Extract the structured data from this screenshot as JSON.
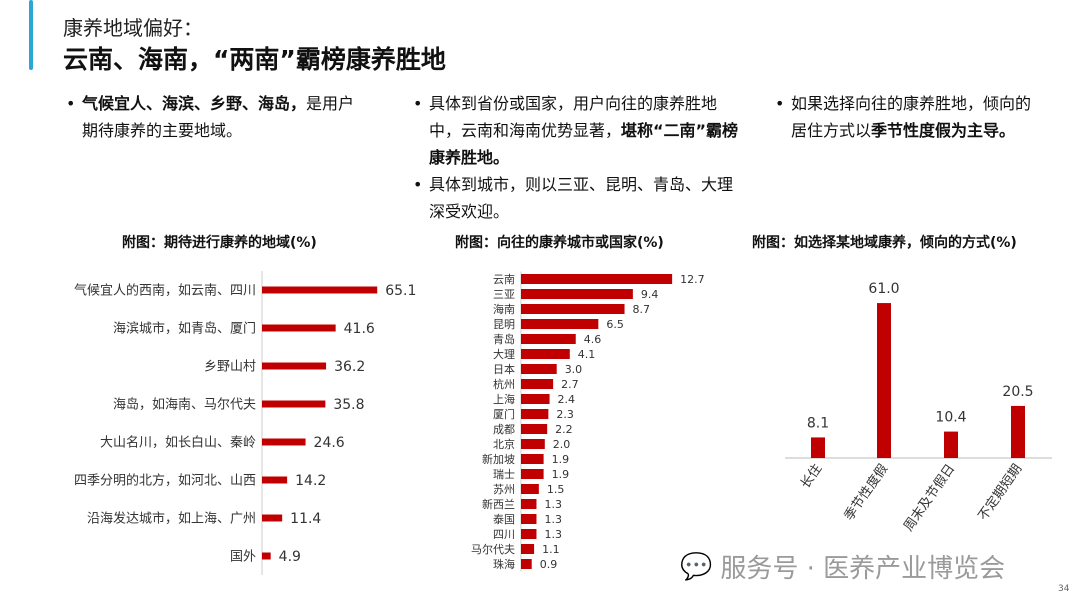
{
  "header": {
    "subtitle": "康养地域偏好：",
    "title": "云南、海南，“两南”霸榜康养胜地"
  },
  "bullets": {
    "col1": [
      {
        "bold": "气候宜人、海滨、乡野、海岛，",
        "rest": "是用户期待康养的主要地域。"
      }
    ],
    "col2": [
      {
        "pre": "具体到省份或国家，用户向往的康养胜地中，云南和海南优势显著，",
        "bold": "堪称“二南”霸榜康养胜地。"
      },
      {
        "pre": "具体到城市，则以三亚、昆明、青岛、大理深受欢迎。",
        "bold": ""
      }
    ],
    "col3": [
      {
        "pre": "如果选择向往的康养胜地，倾向的居住方式以",
        "bold": "季节性度假为主导。"
      }
    ]
  },
  "bar_color": "#c00000",
  "chart_data": [
    {
      "type": "bar",
      "orientation": "horizontal",
      "title": "附图：期待进行康养的地域(%)",
      "categories": [
        "气候宜人的西南，如云南、四川",
        "海滨城市，如青岛、厦门",
        "乡野山村",
        "海岛，如海南、马尔代夫",
        "大山名川，如长白山、秦岭",
        "四季分明的北方，如河北、山西",
        "沿海发达城市，如上海、广州",
        "国外"
      ],
      "values": [
        65.1,
        41.6,
        36.2,
        35.8,
        24.6,
        14.2,
        11.4,
        4.9
      ]
    },
    {
      "type": "bar",
      "orientation": "horizontal",
      "title": "附图：向往的康养城市或国家(%)",
      "categories": [
        "云南",
        "三亚",
        "海南",
        "昆明",
        "青岛",
        "大理",
        "日本",
        "杭州",
        "上海",
        "厦门",
        "成都",
        "北京",
        "新加坡",
        "瑞士",
        "苏州",
        "新西兰",
        "泰国",
        "四川",
        "马尔代夫",
        "珠海"
      ],
      "values": [
        12.7,
        9.4,
        8.7,
        6.5,
        4.6,
        4.1,
        3.0,
        2.7,
        2.4,
        2.3,
        2.2,
        2.0,
        1.9,
        1.9,
        1.5,
        1.3,
        1.3,
        1.3,
        1.1,
        0.9
      ]
    },
    {
      "type": "bar",
      "orientation": "vertical",
      "title": "附图：如选择某地域康养，倾向的方式(%)",
      "categories": [
        "长住",
        "季节性度假",
        "周末及节假日",
        "不定期短期"
      ],
      "values": [
        8.1,
        61.0,
        10.4,
        20.5
      ]
    }
  ],
  "watermark": "服务号 · 医养产业博览会",
  "page_number": "34"
}
